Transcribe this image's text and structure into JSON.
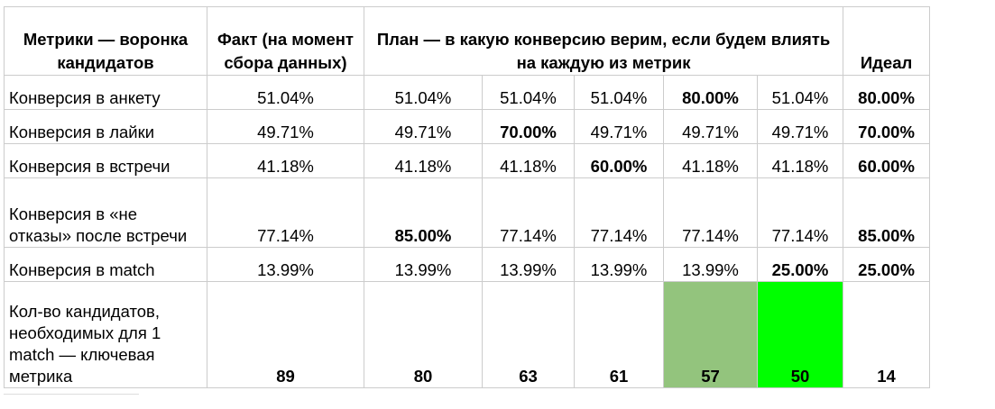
{
  "header": {
    "metric": "Метрики — воронка кандидатов",
    "fact": "Факт (на момент сбора данных)",
    "plan": "План — в какую конверсию верим, если будем влиять на каждую из метрик",
    "ideal": "Идеал"
  },
  "rows": [
    {
      "label": "Конверсия в анкету",
      "fact": "51.04%",
      "plan": [
        "51.04%",
        "51.04%",
        "51.04%",
        "80.00%",
        "51.04%"
      ],
      "ideal": "80.00%"
    },
    {
      "label": "Конверсия в лайки",
      "fact": "49.71%",
      "plan": [
        "49.71%",
        "70.00%",
        "49.71%",
        "49.71%",
        "49.71%"
      ],
      "ideal": "70.00%"
    },
    {
      "label": "Конверсия в встречи",
      "fact": "41.18%",
      "plan": [
        "41.18%",
        "41.18%",
        "60.00%",
        "41.18%",
        "41.18%"
      ],
      "ideal": "60.00%"
    },
    {
      "label": "Конверсия в «не отказы» после встречи",
      "fact": "77.14%",
      "plan": [
        "85.00%",
        "77.14%",
        "77.14%",
        "77.14%",
        "77.14%"
      ],
      "ideal": "85.00%"
    },
    {
      "label": "Конверсия в match",
      "fact": "13.99%",
      "plan": [
        "13.99%",
        "13.99%",
        "13.99%",
        "13.99%",
        "25.00%"
      ],
      "ideal": "25.00%"
    },
    {
      "label": "Кол-во кандидатов, необходимых для 1 match — ключевая метрика",
      "fact": "89",
      "plan": [
        "80",
        "63",
        "61",
        "57",
        "50"
      ],
      "ideal": "14"
    }
  ],
  "highlight_colors": {
    "medium_green": "#93c47d",
    "bright_green": "#00ff00"
  }
}
